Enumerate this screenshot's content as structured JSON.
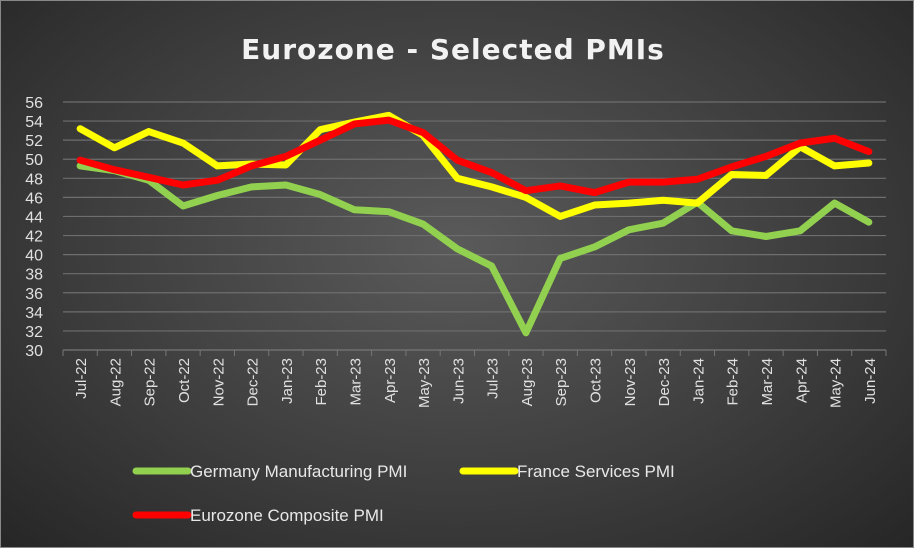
{
  "chart_data": {
    "type": "line",
    "title": "Eurozone - Selected PMIs",
    "xlabel": "",
    "ylabel": "",
    "ylim": [
      30,
      56
    ],
    "yticks": [
      30,
      32,
      34,
      36,
      38,
      40,
      42,
      44,
      46,
      48,
      50,
      52,
      54,
      56
    ],
    "grid": true,
    "legend": "bottom",
    "categories": [
      "Jul-22",
      "Aug-22",
      "Sep-22",
      "Oct-22",
      "Nov-22",
      "Dec-22",
      "Jan-23",
      "Feb-23",
      "Mar-23",
      "Apr-23",
      "May-23",
      "Jun-23",
      "Jul-23",
      "Aug-23",
      "Sep-23",
      "Oct-23",
      "Nov-23",
      "Dec-23",
      "Jan-24",
      "Feb-24",
      "Mar-24",
      "Apr-24",
      "May-24",
      "Jun-24"
    ],
    "series": [
      {
        "name": "Germany Manufacturing PMI",
        "color": "#92d050",
        "values": [
          49.3,
          48.8,
          47.8,
          45.1,
          46.2,
          47.1,
          47.3,
          46.3,
          44.7,
          44.5,
          43.2,
          40.6,
          38.8,
          31.8,
          39.6,
          40.8,
          42.6,
          43.3,
          45.5,
          42.5,
          41.9,
          42.5,
          45.4,
          43.4
        ]
      },
      {
        "name": "France Services PMI",
        "color": "#ffff00",
        "values": [
          53.2,
          51.2,
          52.9,
          51.7,
          49.3,
          49.5,
          49.4,
          53.1,
          53.9,
          54.6,
          52.5,
          48.0,
          47.1,
          46.0,
          44.0,
          45.2,
          45.4,
          45.7,
          45.4,
          48.4,
          48.3,
          51.3,
          49.3,
          49.6
        ]
      },
      {
        "name": "Eurozone Composite PMI",
        "color": "#ff0000",
        "values": [
          49.9,
          48.9,
          48.1,
          47.3,
          47.8,
          49.3,
          50.3,
          52.0,
          53.7,
          54.1,
          52.8,
          49.9,
          48.6,
          46.7,
          47.2,
          46.5,
          47.6,
          47.6,
          47.9,
          49.2,
          50.3,
          51.7,
          52.2,
          50.8
        ]
      }
    ]
  }
}
